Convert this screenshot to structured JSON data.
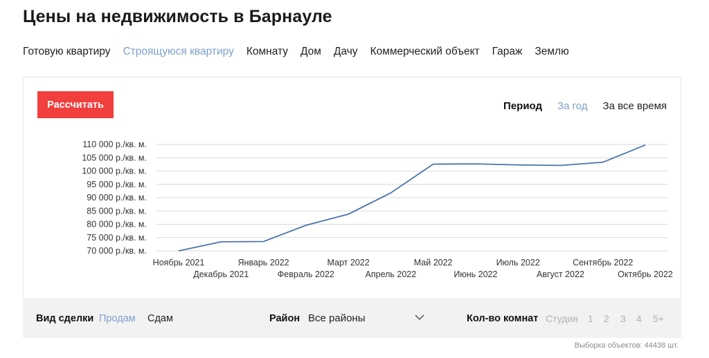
{
  "page": {
    "title": "Цены на недвижимость в Барнауле"
  },
  "property_types": [
    {
      "label": "Готовую квартиру",
      "active": false
    },
    {
      "label": "Строящуюся квартиру",
      "active": true
    },
    {
      "label": "Комнату",
      "active": false
    },
    {
      "label": "Дом",
      "active": false
    },
    {
      "label": "Дачу",
      "active": false
    },
    {
      "label": "Коммерческий объект",
      "active": false
    },
    {
      "label": "Гараж",
      "active": false
    },
    {
      "label": "Землю",
      "active": false
    }
  ],
  "card": {
    "calculate_label": "Рассчитать",
    "period": {
      "label": "Период",
      "options": [
        {
          "label": "За год",
          "active": true
        },
        {
          "label": "За все время",
          "active": false
        }
      ]
    }
  },
  "filters": {
    "deal_label": "Вид сделки",
    "deal_options": [
      {
        "label": "Продам",
        "active": true
      },
      {
        "label": "Сдам",
        "active": false
      }
    ],
    "district_label": "Район",
    "district_value": "Все районы",
    "rooms_label": "Кол-во комнат",
    "rooms_options": [
      "Студия",
      "1",
      "2",
      "3",
      "4",
      "5+"
    ]
  },
  "footer": {
    "note": "Выборка объектов: 44438 шт."
  },
  "colors": {
    "accent": "#f03f3d",
    "link": "#7d9fca",
    "line": "#4a72b0",
    "filter_bg": "#f2f2f2"
  },
  "chart_data": {
    "type": "line",
    "categories": [
      "Ноябрь 2021",
      "Декабрь 2021",
      "Январь 2022",
      "Февраль 2022",
      "Март 2022",
      "Апрель 2022",
      "Май 2022",
      "Июнь 2022",
      "Июль 2022",
      "Август 2022",
      "Сентябрь 2022",
      "Октябрь 2022"
    ],
    "values": [
      70000,
      73400,
      73500,
      79600,
      83800,
      91800,
      102600,
      102700,
      102300,
      102100,
      103300,
      109800
    ],
    "ylim": [
      70000,
      110000
    ],
    "yticks": [
      "70 000 р./кв. м.",
      "75 000 р./кв. м.",
      "80 000 р./кв. м.",
      "85 000 р./кв. м.",
      "90 000 р./кв. м.",
      "95 000 р./кв. м.",
      "100 000 р./кв. м.",
      "105 000 р./кв. м.",
      "110 000 р./кв. м."
    ],
    "ytick_values": [
      70000,
      75000,
      80000,
      85000,
      90000,
      95000,
      100000,
      105000,
      110000
    ],
    "grid": true,
    "xlabel": "",
    "ylabel": ""
  }
}
